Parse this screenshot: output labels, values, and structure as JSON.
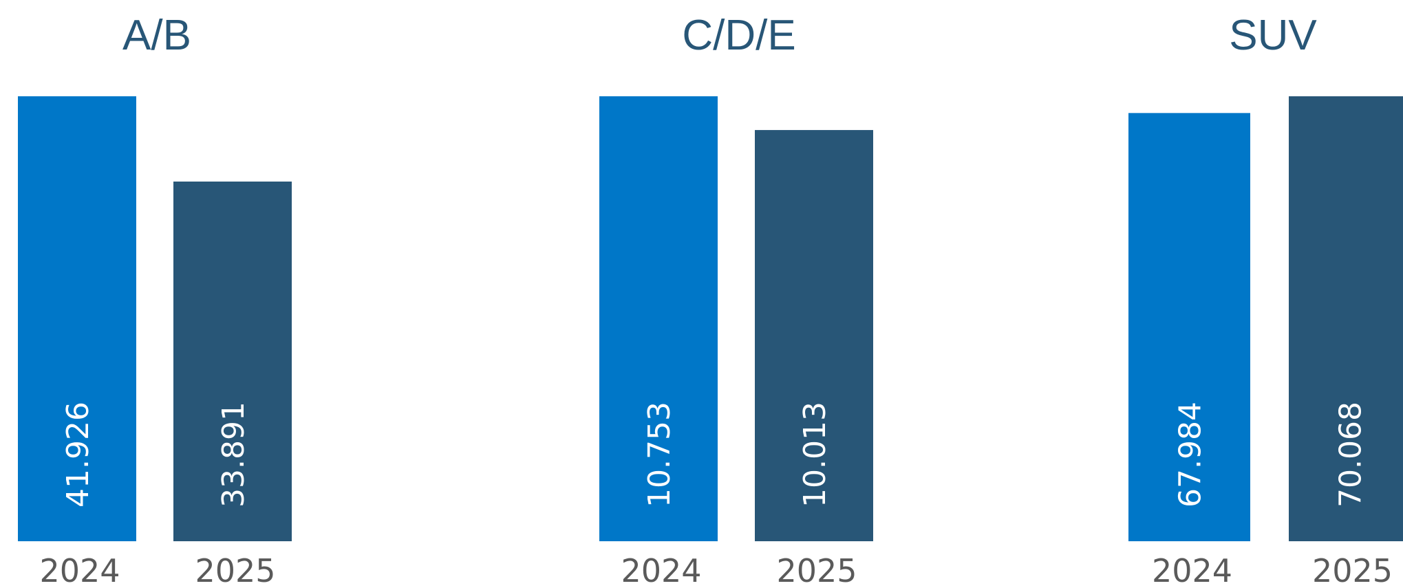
{
  "chart_data": [
    {
      "type": "bar",
      "title": "A/B",
      "categories": [
        "2024",
        "2025"
      ],
      "values": [
        41.926,
        33.891
      ],
      "value_labels": [
        "41.926",
        "33.891"
      ],
      "colors": [
        "#0077c8",
        "#285677"
      ],
      "xlabel": "",
      "ylabel": "",
      "grid": false
    },
    {
      "type": "bar",
      "title": "C/D/E",
      "categories": [
        "2024",
        "2025"
      ],
      "values": [
        10.753,
        10.013
      ],
      "value_labels": [
        "10.753",
        "10.013"
      ],
      "colors": [
        "#0077c8",
        "#285677"
      ],
      "xlabel": "",
      "ylabel": "",
      "grid": false
    },
    {
      "type": "bar",
      "title": "SUV",
      "categories": [
        "2024",
        "2025"
      ],
      "values": [
        67.984,
        70.068
      ],
      "value_labels": [
        "67.984",
        "70.068"
      ],
      "colors": [
        "#0077c8",
        "#285677"
      ],
      "xlabel": "",
      "ylabel": "",
      "grid": false
    }
  ]
}
